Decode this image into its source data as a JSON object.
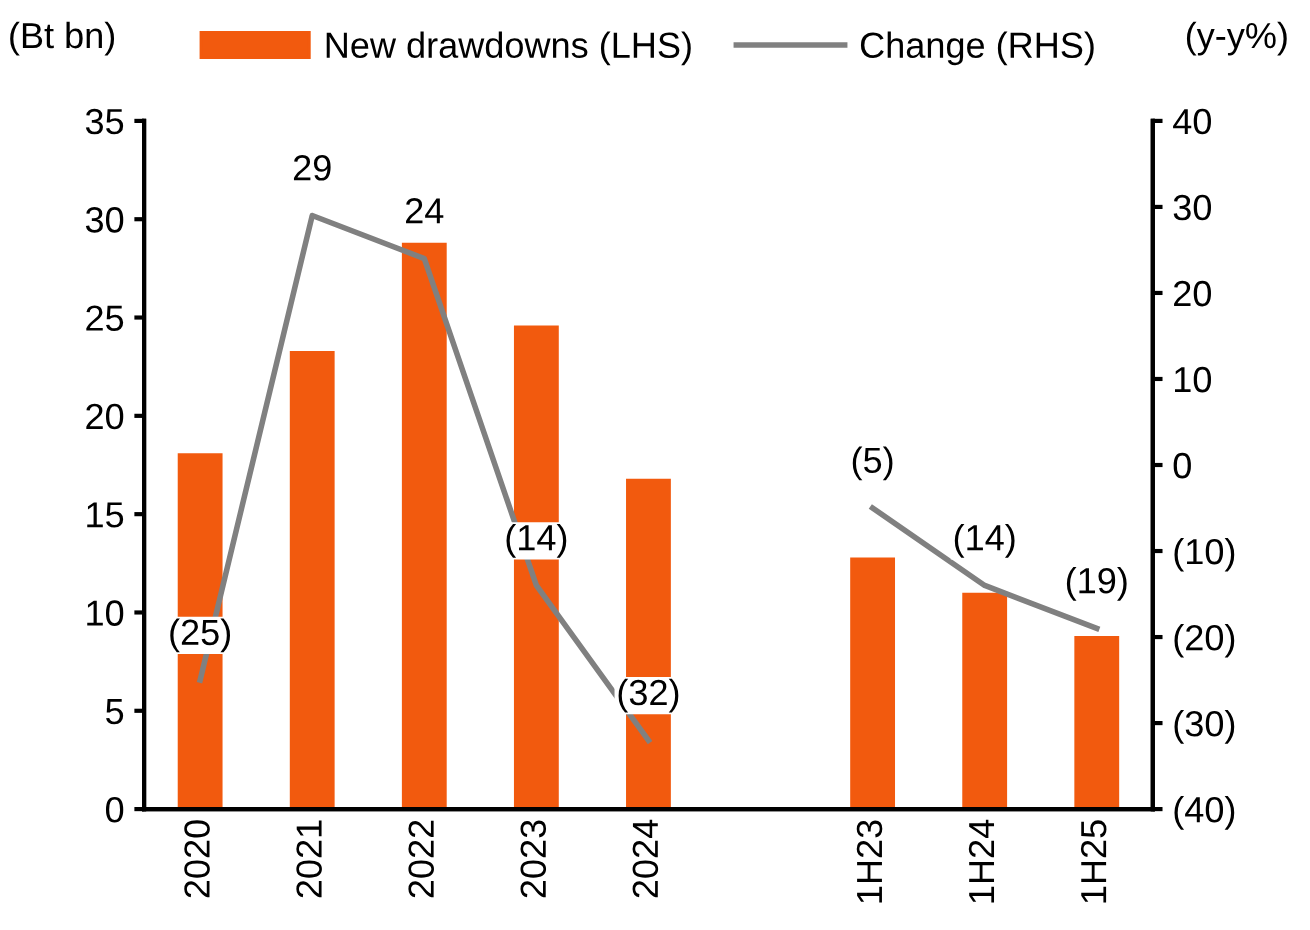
{
  "chart_data": {
    "type": "bar",
    "categories": [
      "2020",
      "2021",
      "2022",
      "2023",
      "2024",
      null,
      "1H23",
      "1H24",
      "1H25"
    ],
    "ylabel": "(Bt bn)",
    "y2label": "(y-y%)",
    "series": [
      {
        "name": "New drawdowns (LHS)",
        "color": "#f25a0e",
        "values": [
          18.1,
          23.3,
          28.8,
          24.6,
          16.8,
          null,
          12.8,
          11.0,
          8.8
        ]
      },
      {
        "name": "Change (RHS)",
        "type": "line",
        "axis": "y2",
        "color": "#808080",
        "values": [
          -25,
          29,
          24,
          -14,
          -32,
          null,
          -5,
          -14,
          -19
        ],
        "value_labels": [
          "(25)",
          "29",
          "24",
          "(14)",
          "(32)",
          null,
          "(5)",
          "(14)",
          "(19)"
        ]
      }
    ],
    "ylim": [
      0,
      35
    ],
    "yticks": [
      0,
      5,
      10,
      15,
      20,
      25,
      30,
      35
    ],
    "y2lim": [
      -40,
      40
    ],
    "y2ticks": [
      {
        "value": -40,
        "label": "(40)"
      },
      {
        "value": -30,
        "label": "(30)"
      },
      {
        "value": -20,
        "label": "(20)"
      },
      {
        "value": -10,
        "label": "(10)"
      },
      0,
      10,
      20,
      30,
      40
    ],
    "grid": false,
    "legend": "top",
    "marker": "none",
    "line_style": "solid"
  }
}
